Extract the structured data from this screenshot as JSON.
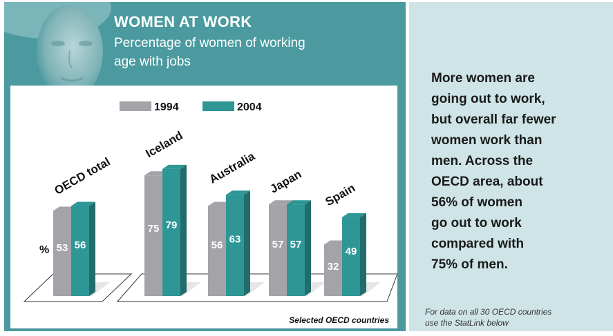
{
  "title": "WOMEN AT WORK",
  "subtitle": "Percentage of women of working age with jobs",
  "summary": "More women are\ngoing out to work,\nbut overall far fewer\nwomen work than\nmen. Across the\nOECD area, about\n56% of women\ngo out to work\ncompared with\n75% of men.",
  "footnote": "For data on all 30 OECD countries\nuse the StatLink below",
  "colors": {
    "series_1994": "#a3a3a8",
    "series_2004": "#2f9696",
    "panel": "#4a9aa0",
    "side_panel": "#cfe4e6"
  },
  "chart_data": {
    "type": "bar",
    "categories": [
      "OECD total",
      "Iceland",
      "Australia",
      "Japan",
      "Spain"
    ],
    "series": [
      {
        "name": "1994",
        "values": [
          53,
          75,
          56,
          57,
          32
        ]
      },
      {
        "name": "2004",
        "values": [
          56,
          79,
          63,
          57,
          49
        ]
      }
    ],
    "unit_label": "%",
    "caption": "Selected OECD countries",
    "legend_position": "top",
    "grid": false
  }
}
